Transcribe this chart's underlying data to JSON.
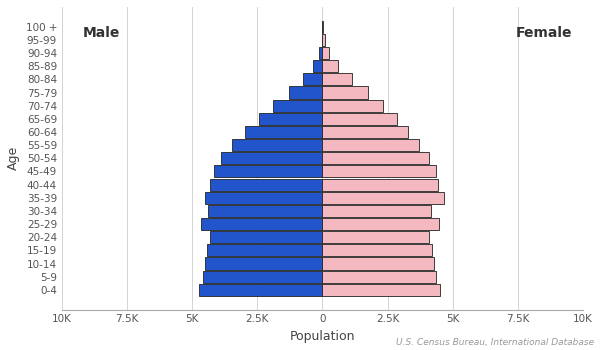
{
  "xlabel": "Population",
  "ylabel": "Age",
  "source": "U.S. Census Bureau, International Database",
  "male_label": "Male",
  "female_label": "Female",
  "age_groups": [
    "0-4",
    "5-9",
    "10-14",
    "15-19",
    "20-24",
    "25-29",
    "30-34",
    "35-39",
    "40-44",
    "45-49",
    "50-54",
    "55-59",
    "60-64",
    "65-69",
    "70-74",
    "75-79",
    "80-84",
    "85-89",
    "90-94",
    "95-99",
    "100 +"
  ],
  "male_values": [
    4750,
    4600,
    4520,
    4430,
    4300,
    4680,
    4380,
    4520,
    4320,
    4180,
    3880,
    3480,
    2980,
    2450,
    1880,
    1280,
    760,
    370,
    125,
    32,
    5
  ],
  "female_values": [
    4520,
    4370,
    4290,
    4200,
    4100,
    4460,
    4180,
    4660,
    4430,
    4360,
    4080,
    3720,
    3270,
    2870,
    2330,
    1730,
    1130,
    610,
    245,
    78,
    14
  ],
  "male_color": "#2255cc",
  "female_color": "#f4b8c1",
  "bar_edge_color": "#222222",
  "bar_linewidth": 0.6,
  "background_color": "#ffffff",
  "xlim": 10000,
  "xticks": [
    -10000,
    -7500,
    -5000,
    -2500,
    0,
    2500,
    5000,
    7500,
    10000
  ],
  "xticklabels": [
    "10K",
    "7.5K",
    "5K",
    "2.5K",
    "0",
    "2.5K",
    "5K",
    "7.5K",
    "10K"
  ],
  "label_fontsize": 9,
  "tick_fontsize": 7.5,
  "source_fontsize": 6.5,
  "male_label_fontsize": 10,
  "female_label_fontsize": 10
}
